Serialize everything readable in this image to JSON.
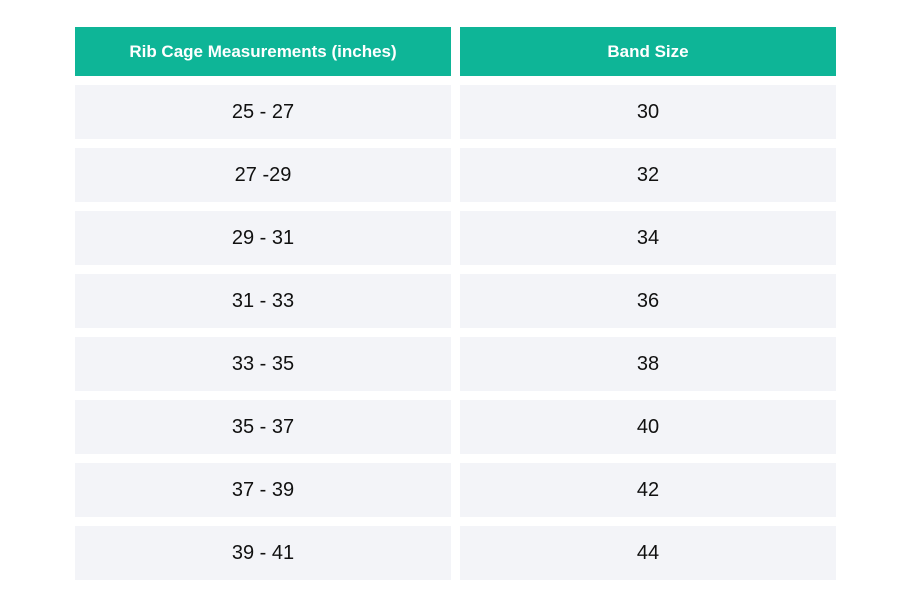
{
  "table": {
    "headers": [
      "Rib Cage Measurements (inches)",
      "Band Size"
    ],
    "rows": [
      [
        "25 - 27",
        "30"
      ],
      [
        "27 -29",
        "32"
      ],
      [
        "29 - 31",
        "34"
      ],
      [
        "31 - 33",
        "36"
      ],
      [
        "33 - 35",
        "38"
      ],
      [
        "35 - 37",
        "40"
      ],
      [
        "37 - 39",
        "42"
      ],
      [
        "39 - 41",
        "44"
      ]
    ]
  },
  "colors": {
    "header_background": "#0eb597",
    "header_text": "#ffffff",
    "row_background": "#f3f4f8",
    "row_text": "#111111"
  }
}
